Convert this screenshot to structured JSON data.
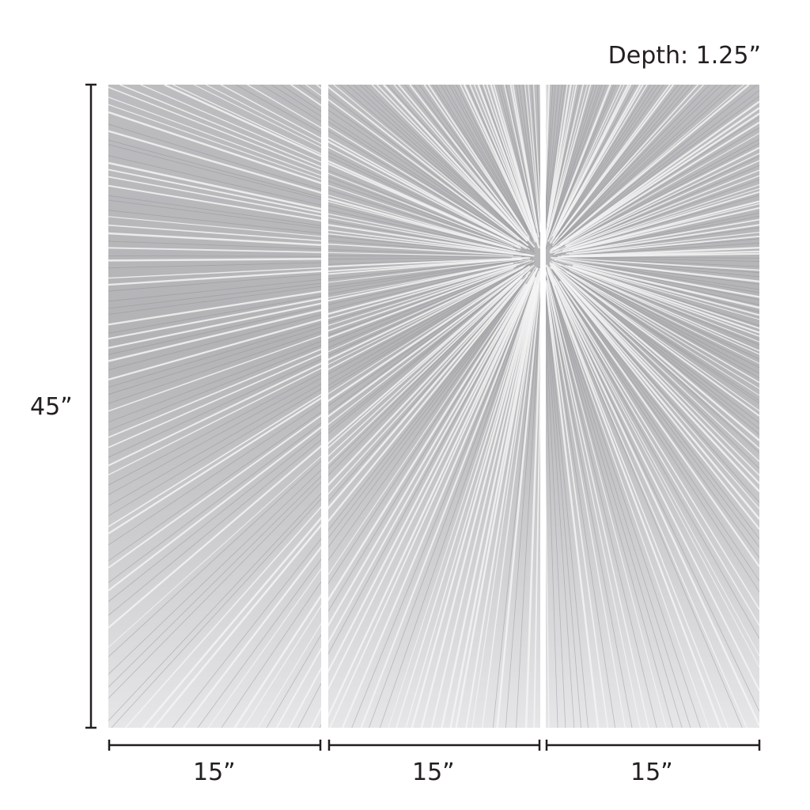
{
  "depth_label": "Depth: 1.25”",
  "height_label": "45”",
  "width_labels": [
    "15”",
    "15”",
    "15”"
  ],
  "panel_count": 3,
  "colors": {
    "panel_base": "#c9c9cb",
    "highlight": "#f4f4f5",
    "shadow": "#8f8f93",
    "dimension_line": "#231f20"
  }
}
